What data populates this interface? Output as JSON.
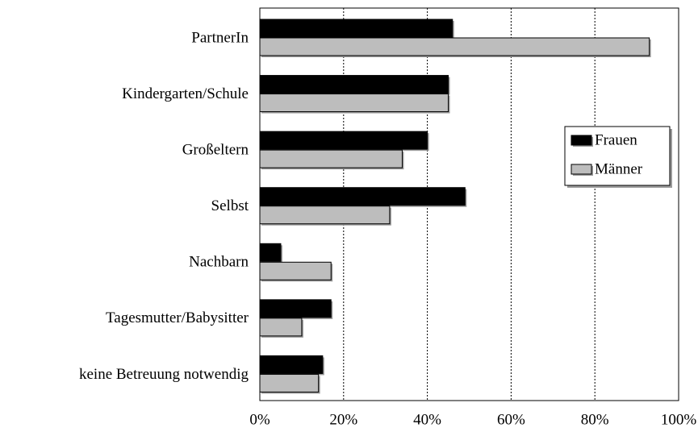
{
  "chart_data": {
    "type": "hbar",
    "categories": [
      "PartnerIn",
      "Kindergarten/Schule",
      "Großeltern",
      "Selbst",
      "Nachbarn",
      "Tagesmutter/Babysitter",
      "keine Betreuung notwendig"
    ],
    "series": [
      {
        "name": "Frauen",
        "color": "#000000",
        "values": [
          46,
          45,
          40,
          49,
          5,
          17,
          15
        ]
      },
      {
        "name": "Männer",
        "color": "#bdbdbd",
        "values": [
          93,
          45,
          34,
          31,
          17,
          10,
          14
        ]
      }
    ],
    "xlim": [
      0,
      100
    ],
    "xticks": [
      {
        "value": 0,
        "label": "0%"
      },
      {
        "value": 20,
        "label": "20%"
      },
      {
        "value": 40,
        "label": "40%"
      },
      {
        "value": 60,
        "label": "60%"
      },
      {
        "value": 80,
        "label": "80%"
      },
      {
        "value": 100,
        "label": "100%"
      }
    ],
    "grid": true,
    "legend": "right"
  }
}
